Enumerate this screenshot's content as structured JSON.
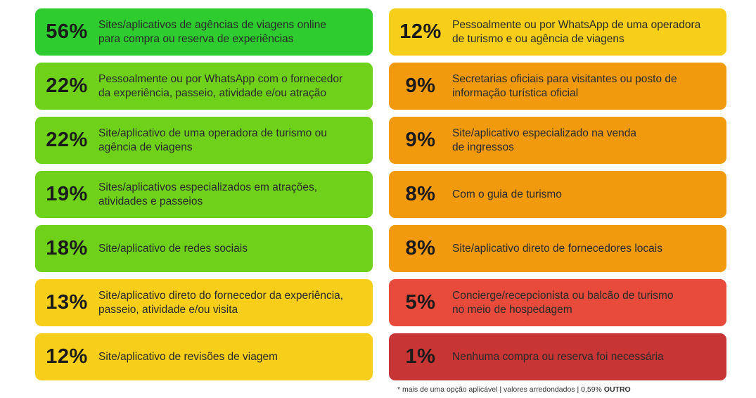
{
  "chart_data": {
    "type": "table",
    "left": [
      {
        "value": 56,
        "text": "56%",
        "label": "Sites/aplicativos de agências de viagens online\npara compra ou reserva de experiências",
        "color": "#2ecc2e"
      },
      {
        "value": 22,
        "text": "22%",
        "label": "Pessoalmente ou por WhatsApp com o fornecedor\nda experiência, passeio, atividade e/ou atração",
        "color": "#6fd11a"
      },
      {
        "value": 22,
        "text": "22%",
        "label": "Site/aplicativo de uma operadora de turismo ou\nagência de viagens",
        "color": "#6fd11a"
      },
      {
        "value": 19,
        "text": "19%",
        "label": "Sites/aplicativos especializados em atrações,\natividades e passeios",
        "color": "#6fd11a"
      },
      {
        "value": 18,
        "text": "18%",
        "label": "Site/aplicativo de redes sociais",
        "color": "#6fd11a"
      },
      {
        "value": 13,
        "text": "13%",
        "label": "Site/aplicativo direto do fornecedor da experiência,\npasseio, atividade e/ou visita",
        "color": "#f7cf1a"
      },
      {
        "value": 12,
        "text": "12%",
        "label": "Site/aplicativo de revisões de viagem",
        "color": "#f7cf1a"
      }
    ],
    "right": [
      {
        "value": 12,
        "text": "12%",
        "label": "Pessoalmente ou por WhatsApp de uma operadora\nde turismo e ou agência de viagens",
        "color": "#f7cf1a"
      },
      {
        "value": 9,
        "text": "9%",
        "label": "Secretarias oficiais para visitantes ou posto de\ninformação turística oficial",
        "color": "#f29a0e"
      },
      {
        "value": 9,
        "text": "9%",
        "label": "Site/aplicativo especializado na venda\nde ingressos",
        "color": "#f29a0e"
      },
      {
        "value": 8,
        "text": "8%",
        "label": "Com o guia de turismo",
        "color": "#f29a0e"
      },
      {
        "value": 8,
        "text": "8%",
        "label": "Site/aplicativo direto de fornecedores locais",
        "color": "#f29a0e"
      },
      {
        "value": 5,
        "text": "5%",
        "label": "Concierge/recepcionista ou balcão de turismo\nno meio de hospedagem",
        "color": "#e84b3c"
      },
      {
        "value": 1,
        "text": "1%",
        "label": "Nenhuma compra ou reserva foi necessária",
        "color": "#c73535"
      }
    ]
  },
  "footnote": {
    "text": "* mais de uma opção aplicável  |  valores arredondados  |  0,59% ",
    "bold": "OUTRO"
  }
}
